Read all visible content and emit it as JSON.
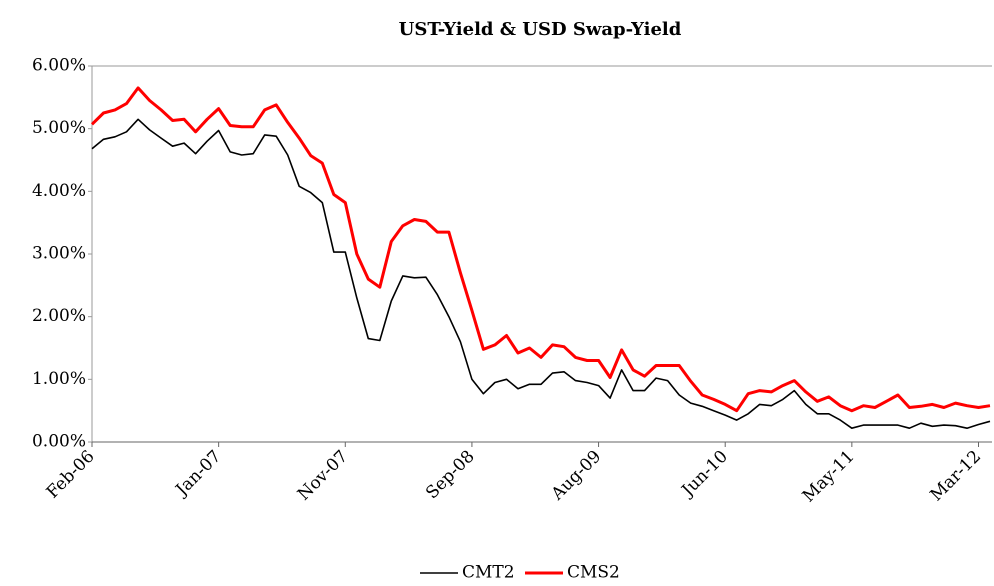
{
  "chart_data": {
    "type": "line",
    "title": "UST-Yield & USD Swap-Yield",
    "categories": [
      "Feb-06",
      null,
      null,
      null,
      null,
      null,
      null,
      null,
      null,
      null,
      null,
      "Jan-07",
      null,
      null,
      null,
      null,
      null,
      null,
      null,
      null,
      null,
      null,
      "Nov-07",
      null,
      null,
      null,
      null,
      null,
      null,
      null,
      null,
      null,
      null,
      "Sep-08",
      null,
      null,
      null,
      null,
      null,
      null,
      null,
      null,
      null,
      null,
      "Aug-09",
      null,
      null,
      null,
      null,
      null,
      null,
      null,
      null,
      null,
      null,
      "Jun-10",
      null,
      null,
      null,
      null,
      null,
      null,
      null,
      null,
      null,
      null,
      "May-11",
      null,
      null,
      null,
      null,
      null,
      null,
      null,
      null,
      null,
      null,
      "Mar-12",
      null
    ],
    "series": [
      {
        "name": "CMT2",
        "color": "#000000",
        "values": [
          4.68,
          4.83,
          4.87,
          4.95,
          5.15,
          4.98,
          4.85,
          4.72,
          4.77,
          4.6,
          4.8,
          4.97,
          4.63,
          4.58,
          4.6,
          4.9,
          4.88,
          4.58,
          4.08,
          3.98,
          3.82,
          3.03,
          3.03,
          2.3,
          1.65,
          1.62,
          2.25,
          2.65,
          2.62,
          2.63,
          2.35,
          2.0,
          1.6,
          1.0,
          0.77,
          0.95,
          1.0,
          0.85,
          0.92,
          0.92,
          1.1,
          1.12,
          0.98,
          0.95,
          0.9,
          0.7,
          1.15,
          0.82,
          0.82,
          1.02,
          0.98,
          0.75,
          0.62,
          0.57,
          0.5,
          0.43,
          0.35,
          0.45,
          0.6,
          0.58,
          0.68,
          0.82,
          0.6,
          0.45,
          0.45,
          0.35,
          0.22,
          0.27,
          0.27,
          0.27,
          0.27,
          0.22,
          0.3,
          0.25,
          0.27,
          0.26,
          0.22,
          0.28,
          0.33
        ]
      },
      {
        "name": "CMS2",
        "color": "#ff0000",
        "values": [
          5.07,
          5.25,
          5.3,
          5.4,
          5.65,
          5.45,
          5.3,
          5.13,
          5.15,
          4.95,
          5.15,
          5.32,
          5.05,
          5.03,
          5.03,
          5.3,
          5.38,
          5.1,
          4.85,
          4.57,
          4.45,
          3.95,
          3.82,
          3.0,
          2.6,
          2.47,
          3.2,
          3.45,
          3.55,
          3.52,
          3.35,
          3.35,
          2.7,
          2.1,
          1.48,
          1.55,
          1.7,
          1.42,
          1.5,
          1.35,
          1.55,
          1.52,
          1.35,
          1.3,
          1.3,
          1.03,
          1.47,
          1.15,
          1.05,
          1.22,
          1.22,
          1.22,
          0.97,
          0.75,
          0.68,
          0.6,
          0.5,
          0.77,
          0.82,
          0.8,
          0.9,
          0.98,
          0.8,
          0.65,
          0.72,
          0.58,
          0.5,
          0.58,
          0.55,
          0.65,
          0.75,
          0.55,
          0.57,
          0.6,
          0.55,
          0.62,
          0.58,
          0.55,
          0.58
        ]
      }
    ],
    "ylim": [
      0,
      6
    ],
    "yticks": [
      {
        "value": 0,
        "label": "0.00%"
      },
      {
        "value": 1,
        "label": "1.00%"
      },
      {
        "value": 2,
        "label": "2.00%"
      },
      {
        "value": 3,
        "label": "3.00%"
      },
      {
        "value": 4,
        "label": "4.00%"
      },
      {
        "value": 5,
        "label": "5.00%"
      },
      {
        "value": 6,
        "label": "6.00%"
      }
    ],
    "legend": "bottom"
  }
}
